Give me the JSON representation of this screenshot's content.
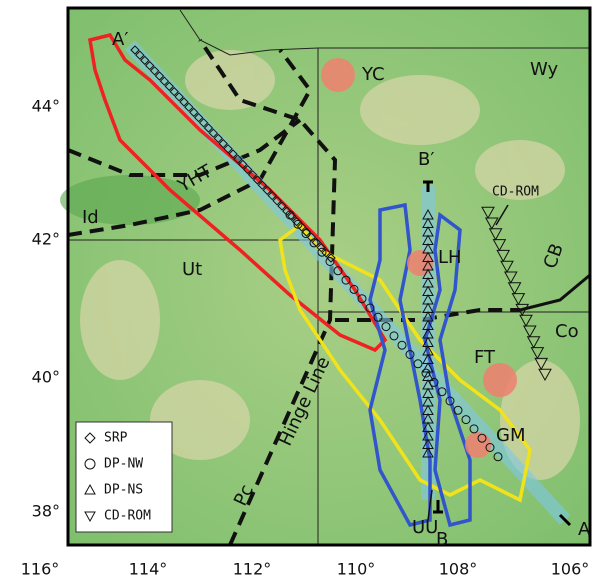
{
  "map": {
    "x_axis_labels": [
      "116°",
      "114°",
      "112°",
      "110°",
      "108°",
      "106°"
    ],
    "y_axis_labels": [
      "44°",
      "42°",
      "40°",
      "38°"
    ],
    "profile_labels": {
      "a_prime": "A′",
      "a": "A",
      "b_prime": "B′",
      "b": "B"
    },
    "state_labels": {
      "wyoming": "Wy",
      "idaho": "Id",
      "utah": "Ut",
      "colorado": "Co"
    },
    "feature_labels": {
      "yc": "YC",
      "yht": "YHT",
      "lh": "LH",
      "ft": "FT",
      "gm": "GM",
      "cb": "CB",
      "pc": "Pc",
      "hinge": "Hinge Line",
      "uu": "UU",
      "cdrom": "CD-ROM"
    },
    "legend": [
      "SRP",
      "DP-NW",
      "DP-NS",
      "CD-ROM"
    ]
  }
}
